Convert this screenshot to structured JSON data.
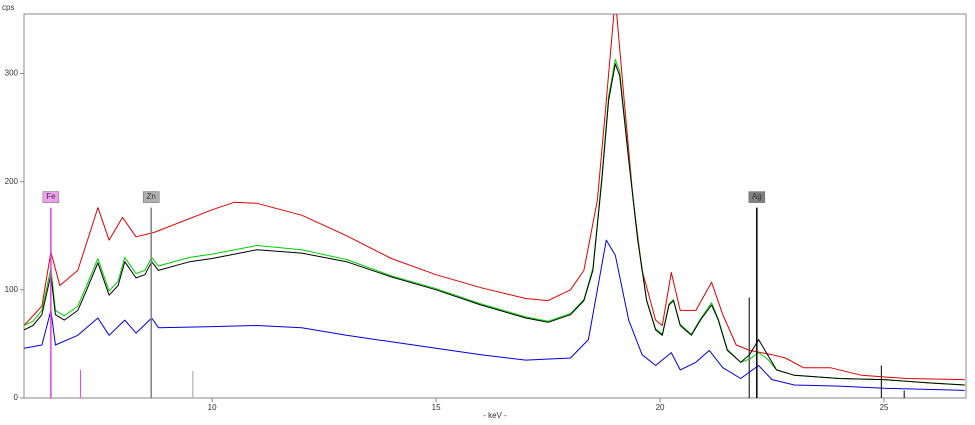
{
  "chart_data": {
    "type": "line",
    "y_label": "cps",
    "x_label": "- keV -",
    "xlim": [
      5.8,
      26.83
    ],
    "ylim": [
      0,
      355
    ],
    "xticks": [
      10,
      15,
      20,
      25
    ],
    "yticks": [
      0,
      100,
      200,
      300
    ],
    "series": [
      {
        "color": "#e00000",
        "x": [
          5.8,
          6.2,
          6.4,
          6.6,
          7.0,
          7.45,
          7.7,
          8.0,
          8.3,
          8.7,
          10,
          10.5,
          11,
          12,
          13,
          14,
          15,
          16,
          17,
          17.5,
          18,
          18.3,
          18.6,
          18.8,
          19.0,
          19.2,
          19.4,
          19.6,
          19.9,
          20.05,
          20.25,
          20.45,
          20.8,
          21.15,
          21.4,
          21.7,
          22.0,
          22.5,
          22.8,
          23.2,
          23.8,
          24.5,
          25.5,
          26.8
        ],
        "values": [
          67,
          85,
          135,
          104,
          118,
          176,
          146,
          167,
          149,
          153,
          174,
          181,
          180,
          169,
          150,
          129,
          114,
          102,
          92,
          90,
          100,
          118,
          183,
          275,
          370,
          275,
          183,
          118,
          72,
          67,
          116,
          81,
          81,
          107,
          77,
          49,
          44,
          40,
          37,
          28,
          28,
          21,
          18,
          17
        ]
      },
      {
        "color": "#00d000",
        "x": [
          5.8,
          6.0,
          6.2,
          6.4,
          6.5,
          6.7,
          7.0,
          7.2,
          7.45,
          7.7,
          7.9,
          8.05,
          8.3,
          8.5,
          8.65,
          8.8,
          9.5,
          10,
          11,
          12,
          13,
          14,
          15,
          16,
          17,
          17.5,
          18,
          18.3,
          18.5,
          18.7,
          18.85,
          19.0,
          19.1,
          19.3,
          19.5,
          19.7,
          19.9,
          20.05,
          20.2,
          20.3,
          20.45,
          20.7,
          20.9,
          21.15,
          21.3,
          21.5,
          21.8,
          22.0,
          22.2,
          22.4,
          22.6,
          23,
          24,
          25,
          26,
          26.8
        ],
        "values": [
          67,
          71,
          81,
          120,
          81,
          76,
          85,
          104,
          129,
          99,
          108,
          130,
          115,
          118,
          130,
          122,
          130,
          133,
          141,
          137,
          128,
          113,
          101,
          87,
          75,
          71,
          78,
          91,
          120,
          204,
          279,
          313,
          302,
          222,
          148,
          91,
          64,
          59,
          87,
          91,
          68,
          59,
          73,
          88,
          73,
          45,
          33,
          36,
          42,
          36,
          26,
          21,
          18,
          17,
          14,
          12
        ]
      },
      {
        "color": "#000000",
        "x": [
          5.8,
          6.0,
          6.2,
          6.4,
          6.5,
          6.7,
          7.0,
          7.2,
          7.45,
          7.7,
          7.9,
          8.05,
          8.3,
          8.5,
          8.65,
          8.8,
          9.5,
          10,
          11,
          12,
          13,
          14,
          15,
          16,
          17,
          17.5,
          18,
          18.3,
          18.5,
          18.7,
          18.85,
          19.0,
          19.1,
          19.3,
          19.5,
          19.7,
          19.9,
          20.05,
          20.2,
          20.3,
          20.45,
          20.7,
          20.9,
          21.15,
          21.3,
          21.5,
          21.8,
          22.0,
          22.2,
          22.4,
          22.6,
          23,
          24,
          25,
          26,
          26.8
        ],
        "values": [
          63,
          67,
          77,
          114,
          77,
          72,
          81,
          100,
          125,
          95,
          104,
          126,
          111,
          114,
          126,
          118,
          126,
          129,
          137,
          134,
          126,
          112,
          100,
          86,
          74,
          70,
          77,
          90,
          118,
          201,
          275,
          309,
          298,
          220,
          146,
          90,
          63,
          58,
          86,
          90,
          67,
          58,
          72,
          86,
          72,
          44,
          33,
          40,
          54,
          40,
          26,
          21,
          18,
          17,
          14,
          12
        ]
      },
      {
        "color": "#0000e0",
        "x": [
          5.8,
          6.2,
          6.4,
          6.5,
          7.0,
          7.45,
          7.7,
          8.05,
          8.3,
          8.65,
          8.8,
          10,
          11,
          12,
          13,
          14,
          15,
          16,
          17,
          18,
          18.4,
          18.8,
          19.0,
          19.3,
          19.6,
          19.9,
          20.25,
          20.45,
          20.8,
          21.1,
          21.4,
          21.8,
          22.2,
          22.5,
          23,
          24,
          25,
          26.8
        ],
        "values": [
          46,
          49,
          81,
          49,
          58,
          74,
          58,
          72,
          60,
          74,
          65,
          66,
          67,
          65,
          58,
          52,
          46,
          40,
          35,
          37,
          54,
          146,
          132,
          72,
          40,
          30,
          42,
          26,
          33,
          44,
          28,
          18,
          30,
          17,
          12,
          11,
          9,
          7
        ]
      }
    ],
    "element_markers": [
      {
        "label": "Fe",
        "energy": 6.4,
        "height": 176,
        "color": "#e040e0",
        "box": "#f0a0f0"
      },
      {
        "label": "Zn",
        "energy": 8.64,
        "height": 176,
        "color": "#808080",
        "box": "#b0b0b0"
      },
      {
        "label": "Ag",
        "energy": 22.16,
        "height": 176,
        "color": "#000000",
        "box": "#808080"
      }
    ],
    "line_markers": [
      {
        "energy": 7.06,
        "height": 26,
        "color": "#e040e0"
      },
      {
        "energy": 9.57,
        "height": 25,
        "color": "#a0a0a0"
      },
      {
        "energy": 21.99,
        "height": 93,
        "color": "#000000"
      },
      {
        "energy": 24.94,
        "height": 30,
        "color": "#000000"
      },
      {
        "energy": 25.45,
        "height": 7,
        "color": "#000000"
      }
    ]
  }
}
